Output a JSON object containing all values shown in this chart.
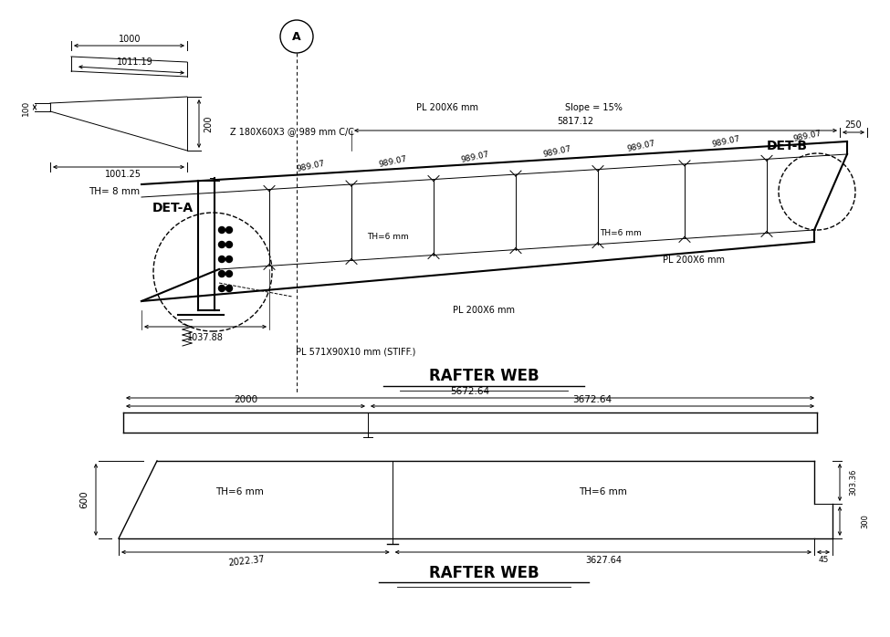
{
  "bg_color": "#ffffff",
  "line_color": "#000000",
  "top_section_label_TH8": "TH= 8 mm",
  "Z_section": "Z 180X60X3 @ 989 mm C/C",
  "PL_top_label": "PL 200X6 mm",
  "PL_bottom_label": "PL 200X6 mm",
  "PL_right_label": "PL 200X6 mm",
  "slope_label": "Slope = 15%",
  "TH6_top_label": "TH=6 mm",
  "TH6_bot_label": "TH=6 mm",
  "PL_stiff_label": "PL 571X90X10 mm (STIFF.)",
  "DET_A_label": "DET-A",
  "DET_B_label": "DET-B",
  "dim_250": "250",
  "dim_1037": "1037.88",
  "dim_5817": "5817.12",
  "dim_989": "989.07",
  "title_rafter_web": "RAFTER WEB",
  "bot_rect_dim_total": "5672.64",
  "bot_rect_dim_left": "2000",
  "bot_rect_dim_right": "3672.64",
  "bot_trap_TH6_left": "TH=6 mm",
  "bot_trap_TH6_right": "TH=6 mm",
  "bot_trap_dim_600": "600",
  "bot_trap_dim_2022": "2022.37",
  "bot_trap_dim_3627": "3627.64",
  "bot_trap_dim_45": "45",
  "bot_trap_dim_303": "303.36",
  "bot_trap_dim_300": "300",
  "dim_1000": "1000",
  "dim_1011": "1011.19",
  "dim_200": "200",
  "dim_100": "100",
  "dim_1001": "1001.25"
}
